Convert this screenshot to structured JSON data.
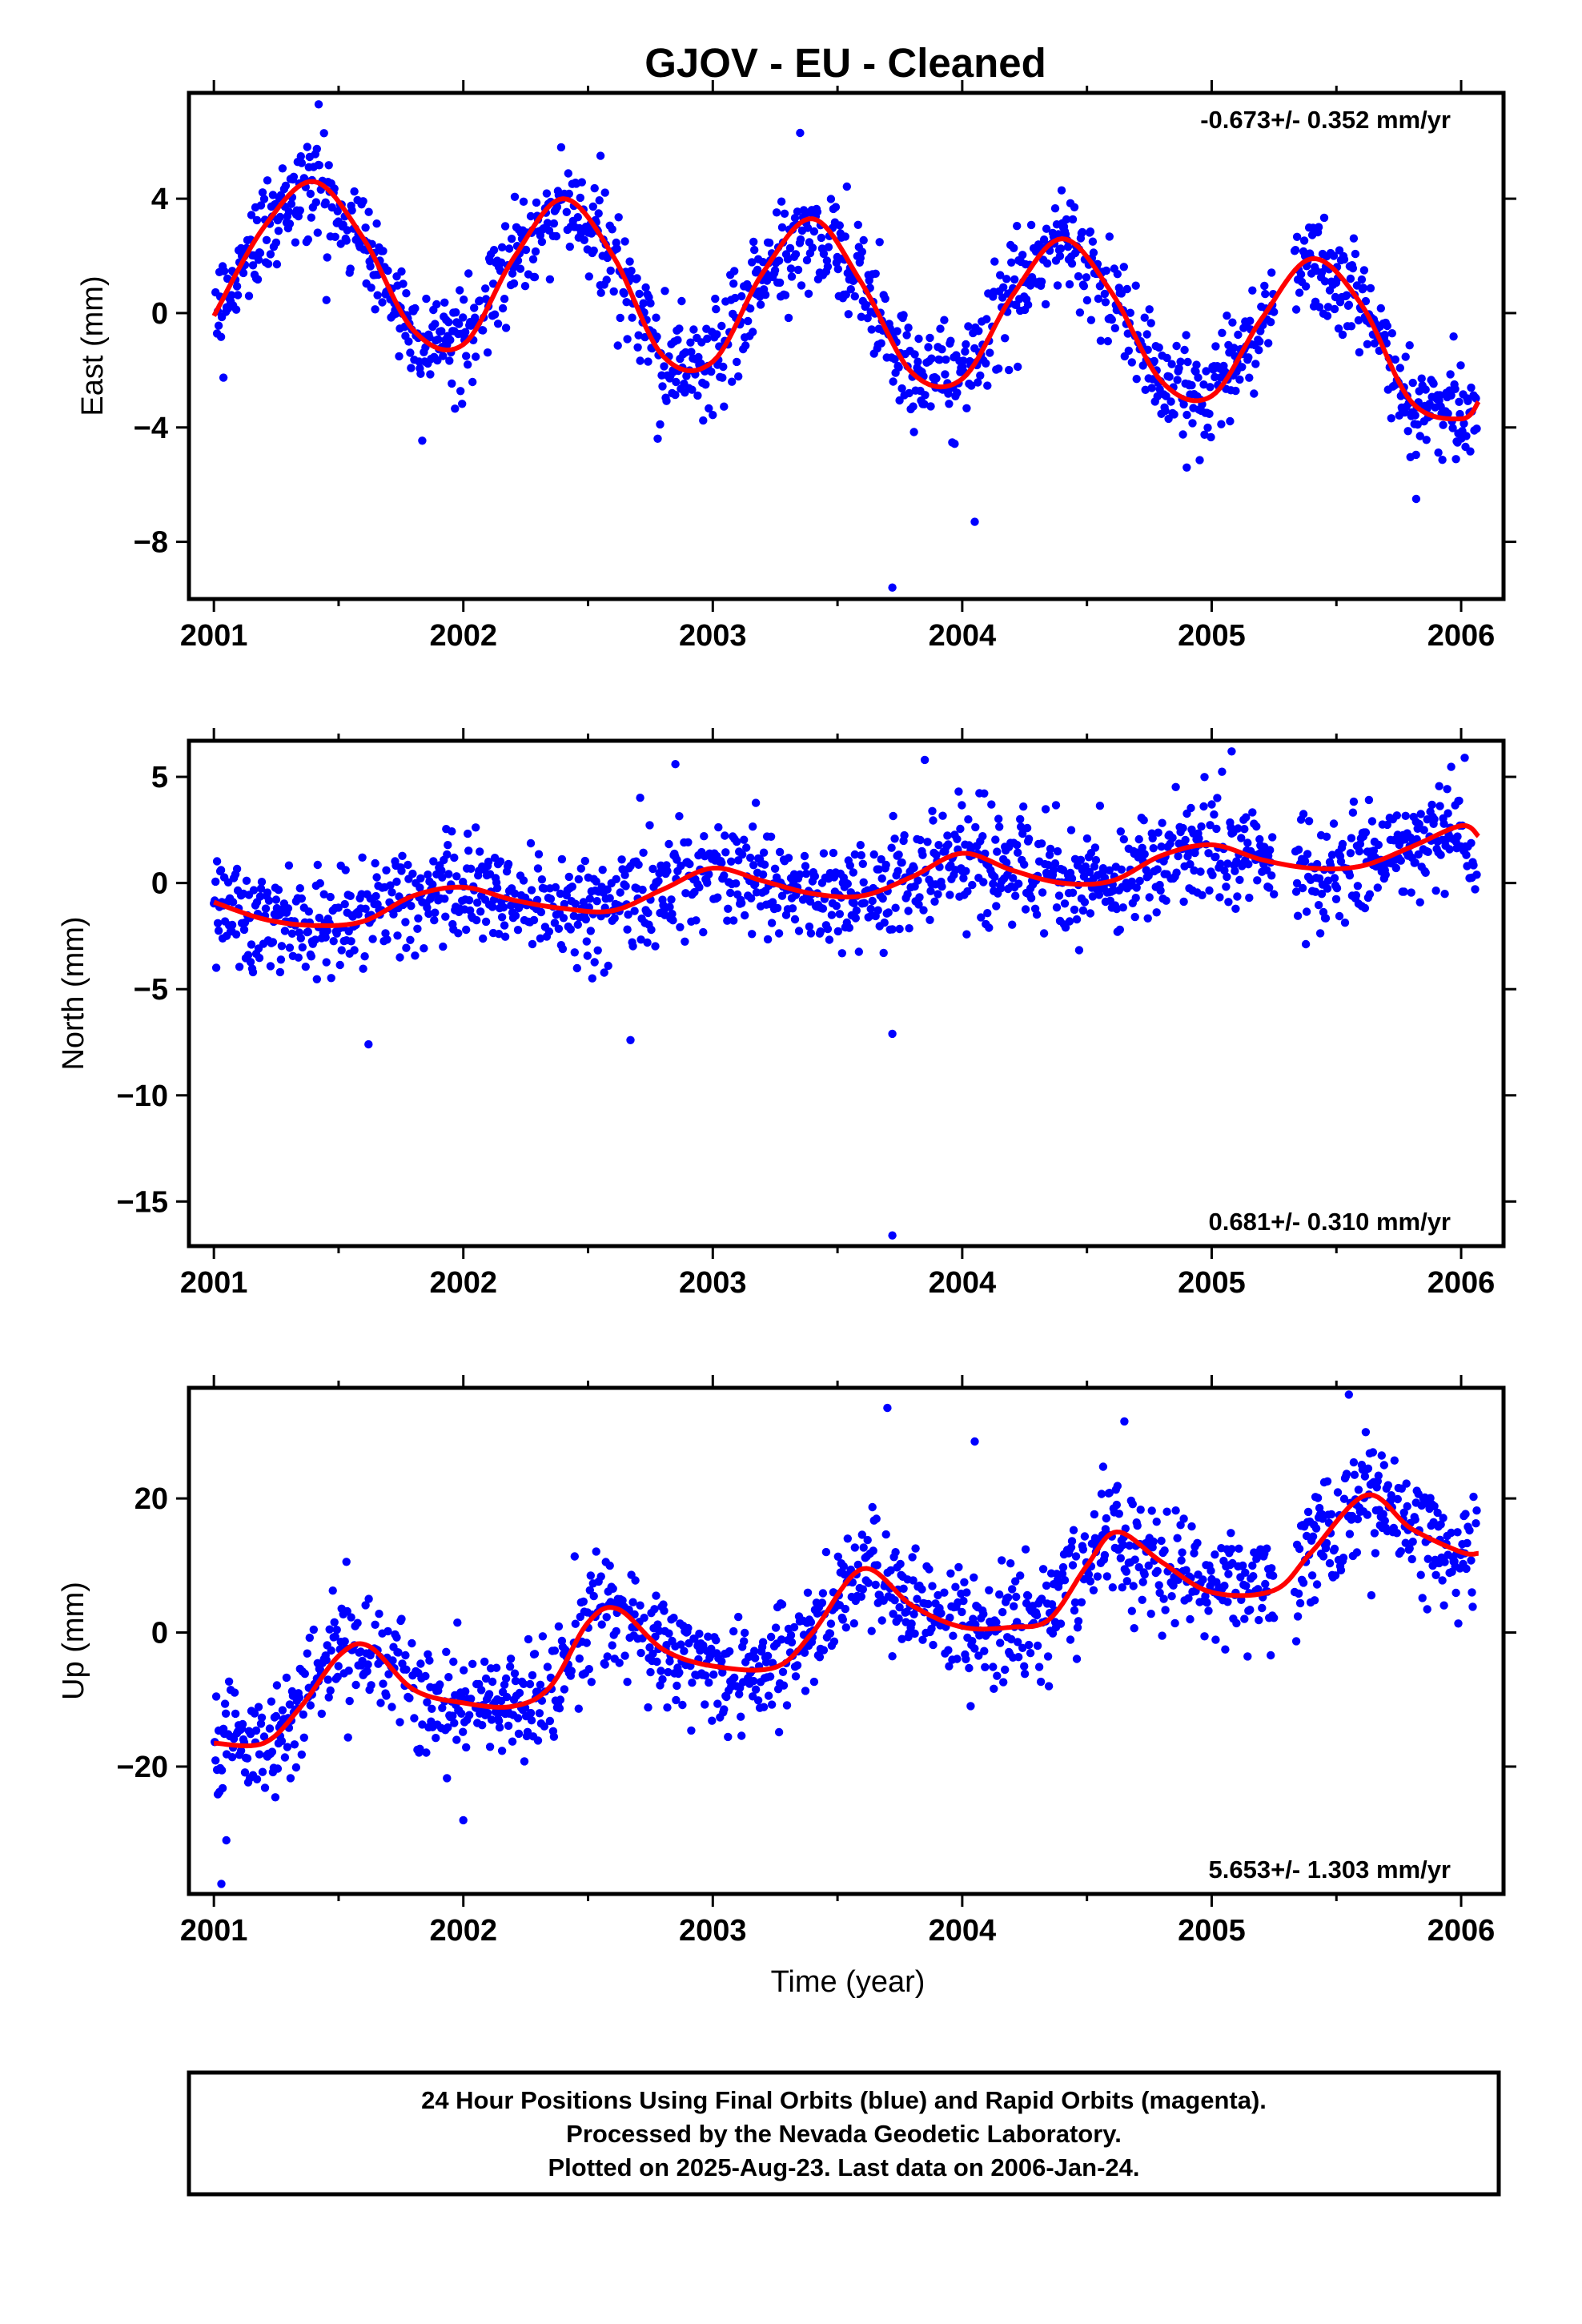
{
  "title": "GJOV  - EU - Cleaned",
  "colors": {
    "points": "#0000ff",
    "fit": "#ff0000",
    "frame": "#000000"
  },
  "chart_data": [
    {
      "type": "scatter",
      "id": "east",
      "ylabel": "East (mm)",
      "xlabel": "",
      "rate": "-0.673+/- 0.352 mm/yr",
      "rate_position": "top-right",
      "xlim": [
        2000.9,
        2006.17
      ],
      "ylim": [
        -10,
        7.7
      ],
      "xticks": [
        2001,
        2002,
        2003,
        2004,
        2005,
        2006
      ],
      "xtick_labels": [
        "2001",
        "2002",
        "2003",
        "2004",
        "2005",
        "2006"
      ],
      "yticks": [
        -8,
        -4,
        0,
        4
      ],
      "ytick_labels": [
        "−8",
        "−4",
        "0",
        "4"
      ],
      "fit_model": {
        "trend_mm_per_yr": -0.673,
        "offset": 1.3,
        "annual_amp": 2.9,
        "annual_peak": 0.4,
        "semi_amp": 0.25,
        "semi_peak": 0.15
      },
      "fit": {
        "x": [
          2001.0,
          2001.2,
          2001.4,
          2001.6,
          2001.8,
          2002.0,
          2002.2,
          2002.4,
          2002.6,
          2002.8,
          2003.0,
          2003.2,
          2003.4,
          2003.6,
          2003.8,
          2004.0,
          2004.2,
          2004.4,
          2004.6,
          2004.8,
          2005.0,
          2005.2,
          2005.4,
          2005.6,
          2005.8,
          2006.0,
          2006.07
        ],
        "y": [
          -0.1,
          3.0,
          4.6,
          2.6,
          -0.6,
          -1.1,
          1.9,
          4.0,
          2.0,
          -1.5,
          -1.7,
          1.4,
          3.3,
          1.0,
          -2.1,
          -2.3,
          0.6,
          2.6,
          0.7,
          -2.4,
          -2.9,
          -0.2,
          1.9,
          0.3,
          -3.1,
          -3.7,
          -3.1
        ]
      },
      "series_name": "Final Orbits",
      "points": "generated",
      "noise_sd": 0.9,
      "outliers": [
        [
          2001.42,
          7.3
        ],
        [
          2003.35,
          6.3
        ],
        [
          2003.72,
          -9.6
        ],
        [
          2002.55,
          5.5
        ],
        [
          2004.9,
          -5.4
        ],
        [
          2005.82,
          -6.5
        ],
        [
          2004.05,
          -7.3
        ]
      ]
    },
    {
      "type": "scatter",
      "id": "north",
      "ylabel": "North (mm)",
      "xlabel": "",
      "rate": "0.681+/- 0.310 mm/yr",
      "rate_position": "bottom-right",
      "xlim": [
        2000.9,
        2006.17
      ],
      "ylim": [
        -17.1,
        6.7
      ],
      "xticks": [
        2001,
        2002,
        2003,
        2004,
        2005,
        2006
      ],
      "xtick_labels": [
        "2001",
        "2002",
        "2003",
        "2004",
        "2005",
        "2006"
      ],
      "yticks": [
        -15,
        -10,
        -5,
        0,
        5
      ],
      "ytick_labels": [
        "−15",
        "−10",
        "−5",
        "0",
        "5"
      ],
      "fit": {
        "x": [
          2001.0,
          2001.2,
          2001.4,
          2001.6,
          2001.8,
          2002.0,
          2002.2,
          2002.4,
          2002.6,
          2002.8,
          2003.0,
          2003.2,
          2003.4,
          2003.6,
          2003.8,
          2004.0,
          2004.2,
          2004.4,
          2004.6,
          2004.8,
          2005.0,
          2005.2,
          2005.4,
          2005.6,
          2005.8,
          2006.0,
          2006.07
        ],
        "y": [
          -0.9,
          -1.7,
          -2.0,
          -1.8,
          -0.6,
          -0.2,
          -0.8,
          -1.2,
          -1.3,
          -0.3,
          0.7,
          0.1,
          -0.5,
          -0.6,
          0.3,
          1.4,
          0.6,
          0.0,
          0.1,
          1.3,
          1.8,
          1.1,
          0.7,
          0.8,
          1.7,
          2.7,
          2.2
        ]
      },
      "series_name": "Final Orbits",
      "points": "generated",
      "noise_sd": 1.25,
      "outliers": [
        [
          2001.62,
          -7.6
        ],
        [
          2002.67,
          -7.4
        ],
        [
          2003.72,
          -7.1
        ],
        [
          2003.72,
          -16.6
        ],
        [
          2002.85,
          5.6
        ],
        [
          2005.08,
          6.2
        ],
        [
          2003.85,
          5.8
        ]
      ]
    },
    {
      "type": "scatter",
      "id": "up",
      "ylabel": "Up (mm)",
      "xlabel": "Time (year)",
      "rate": "5.653+/- 1.303 mm/yr",
      "rate_position": "bottom-right",
      "xlim": [
        2000.9,
        2006.17
      ],
      "ylim": [
        -39,
        36.5
      ],
      "xticks": [
        2001,
        2002,
        2003,
        2004,
        2005,
        2006
      ],
      "xtick_labels": [
        "2001",
        "2002",
        "2003",
        "2004",
        "2005",
        "2006"
      ],
      "yticks": [
        -20,
        0,
        20
      ],
      "ytick_labels": [
        "−20",
        "0",
        "20"
      ],
      "fit": {
        "x": [
          2001.0,
          2001.2,
          2001.35,
          2001.5,
          2001.62,
          2001.8,
          2002.0,
          2002.2,
          2002.35,
          2002.5,
          2002.62,
          2002.8,
          2003.0,
          2003.25,
          2003.4,
          2003.6,
          2003.8,
          2004.0,
          2004.2,
          2004.35,
          2004.5,
          2004.62,
          2004.8,
          2005.0,
          2005.25,
          2005.4,
          2005.62,
          2005.8,
          2006.0,
          2006.07
        ],
        "y": [
          -16.5,
          -16.5,
          -11.0,
          -3.5,
          -2.0,
          -8.5,
          -10.5,
          -11.0,
          -8.0,
          1.5,
          3.5,
          -2.5,
          -5.0,
          -5.2,
          0.0,
          9.5,
          4.0,
          0.8,
          0.8,
          2.0,
          10.0,
          15.0,
          10.5,
          6.0,
          6.3,
          12.0,
          20.5,
          15.5,
          12.0,
          11.8
        ]
      },
      "series_name": "Final Orbits",
      "points": "generated",
      "noise_sd": 4.2,
      "outliers": [
        [
          2001.03,
          -37.5
        ],
        [
          2003.7,
          33.5
        ],
        [
          2005.55,
          35.5
        ],
        [
          2004.65,
          31.5
        ],
        [
          2004.05,
          28.5
        ],
        [
          2001.05,
          -31
        ],
        [
          2002.0,
          -28
        ]
      ]
    }
  ],
  "footer": {
    "line1": "24 Hour Positions Using Final Orbits (blue) and Rapid Orbits (magenta).",
    "line2": "Processed by the Nevada Geodetic Laboratory.",
    "line3": "Plotted on 2025-Aug-23. Last data on 2006-Jan-24."
  }
}
